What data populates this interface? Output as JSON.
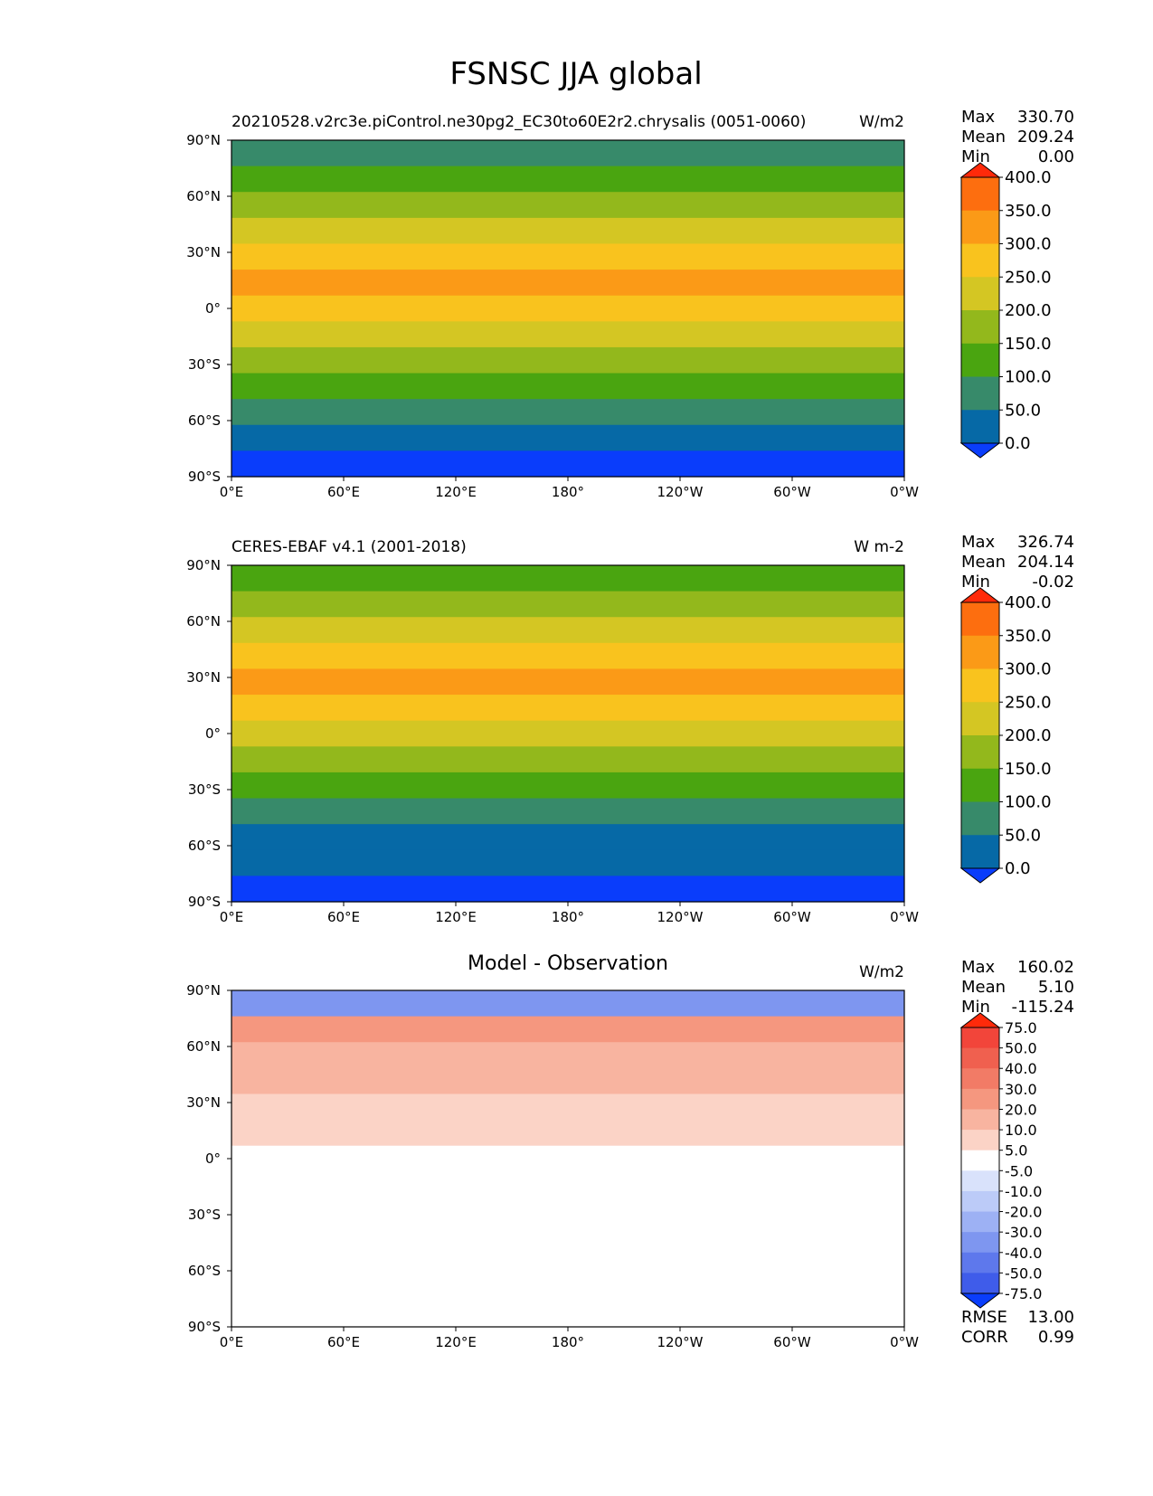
{
  "figure": {
    "title": "FSNSC JJA global"
  },
  "chart_data": [
    {
      "type": "heatmap",
      "panel": "test",
      "title_left": "20210528.v2rc3e.piControl.ne30pg2_EC30to60E2r2.chrysalis (0051-0060)",
      "title_center": "",
      "units": "W/m2",
      "stats": {
        "max_label": "Max",
        "max": "330.70",
        "mean_label": "Mean",
        "mean": "209.24",
        "min_label": "Min",
        "min": "0.00"
      },
      "colorbar": {
        "levels": [
          "400.0",
          "350.0",
          "300.0",
          "250.0",
          "200.0",
          "150.0",
          "100.0",
          "50.0",
          "0.0"
        ],
        "colors": [
          "#ff2a0a",
          "#fd6e0f",
          "#fb9a17",
          "#f9c31e",
          "#d4c623",
          "#93b81c",
          "#4aa510",
          "#378a6a",
          "#0669a6",
          "#0a3dfb"
        ]
      },
      "band_colors": [
        "#378a6a",
        "#4aa510",
        "#93b81c",
        "#d4c623",
        "#f9c31e",
        "#fb9a17",
        "#f9c31e",
        "#d4c623",
        "#93b81c",
        "#4aa510",
        "#378a6a",
        "#0669a6",
        "#0a3dfb"
      ],
      "xticks": [
        "0°E",
        "60°E",
        "120°E",
        "180°",
        "120°W",
        "60°W",
        "0°W"
      ],
      "yticks": [
        "90°N",
        "60°N",
        "30°N",
        "0°",
        "30°S",
        "60°S",
        "90°S"
      ],
      "xlim": [
        0,
        360
      ],
      "ylim": [
        -90,
        90
      ]
    },
    {
      "type": "heatmap",
      "panel": "reference",
      "title_left": "CERES-EBAF v4.1 (2001-2018)",
      "title_center": "",
      "units": "W m-2",
      "stats": {
        "max_label": "Max",
        "max": "326.74",
        "mean_label": "Mean",
        "mean": "204.14",
        "min_label": "Min",
        "min": "-0.02"
      },
      "colorbar": {
        "levels": [
          "400.0",
          "350.0",
          "300.0",
          "250.0",
          "200.0",
          "150.0",
          "100.0",
          "50.0",
          "0.0"
        ],
        "colors": [
          "#ff2a0a",
          "#fd6e0f",
          "#fb9a17",
          "#f9c31e",
          "#d4c623",
          "#93b81c",
          "#4aa510",
          "#378a6a",
          "#0669a6",
          "#0a3dfb"
        ]
      },
      "band_colors": [
        "#4aa510",
        "#93b81c",
        "#d4c623",
        "#f9c31e",
        "#fb9a17",
        "#f9c31e",
        "#d4c623",
        "#93b81c",
        "#4aa510",
        "#378a6a",
        "#0669a6",
        "#0669a6",
        "#0a3dfb"
      ],
      "xticks": [
        "0°E",
        "60°E",
        "120°E",
        "180°",
        "120°W",
        "60°W",
        "0°W"
      ],
      "yticks": [
        "90°N",
        "60°N",
        "30°N",
        "0°",
        "30°S",
        "60°S",
        "90°S"
      ],
      "xlim": [
        0,
        360
      ],
      "ylim": [
        -90,
        90
      ]
    },
    {
      "type": "heatmap",
      "panel": "difference",
      "title_left": "",
      "title_center": "Model - Observation",
      "units": "W/m2",
      "stats": {
        "max_label": "Max",
        "max": "160.02",
        "mean_label": "Mean",
        "mean": "5.10",
        "min_label": "Min",
        "min": "-115.24"
      },
      "colorbar": {
        "levels": [
          "75.0",
          "50.0",
          "40.0",
          "30.0",
          "20.0",
          "10.0",
          "5.0",
          "-5.0",
          "-10.0",
          "-20.0",
          "-30.0",
          "-40.0",
          "-50.0",
          "-75.0"
        ],
        "colors": [
          "#ff2a0a",
          "#f2453a",
          "#f0604f",
          "#f27b66",
          "#f5977f",
          "#f8b4a0",
          "#fbd3c6",
          "#ffffff",
          "#d9e2fb",
          "#bccbf8",
          "#9db1f4",
          "#7e96f0",
          "#5e78ec",
          "#3f5cea",
          "#0a3dfb"
        ]
      },
      "band_colors": [
        "#7e96f0",
        "#f5977f",
        "#f8b4a0",
        "#f8b4a0",
        "#fbd3c6",
        "#fbd3c6",
        "#ffffff",
        "#ffffff",
        "#ffffff",
        "#ffffff",
        "#ffffff",
        "#ffffff",
        "#ffffff"
      ],
      "xticks": [
        "0°E",
        "60°E",
        "120°E",
        "180°",
        "120°W",
        "60°W",
        "0°W"
      ],
      "yticks": [
        "90°N",
        "60°N",
        "30°N",
        "0°",
        "30°S",
        "60°S",
        "90°S"
      ],
      "xlim": [
        0,
        360
      ],
      "ylim": [
        -90,
        90
      ],
      "metrics": {
        "rmse_label": "RMSE",
        "rmse": "13.00",
        "corr_label": "CORR",
        "corr": "0.99"
      }
    }
  ]
}
